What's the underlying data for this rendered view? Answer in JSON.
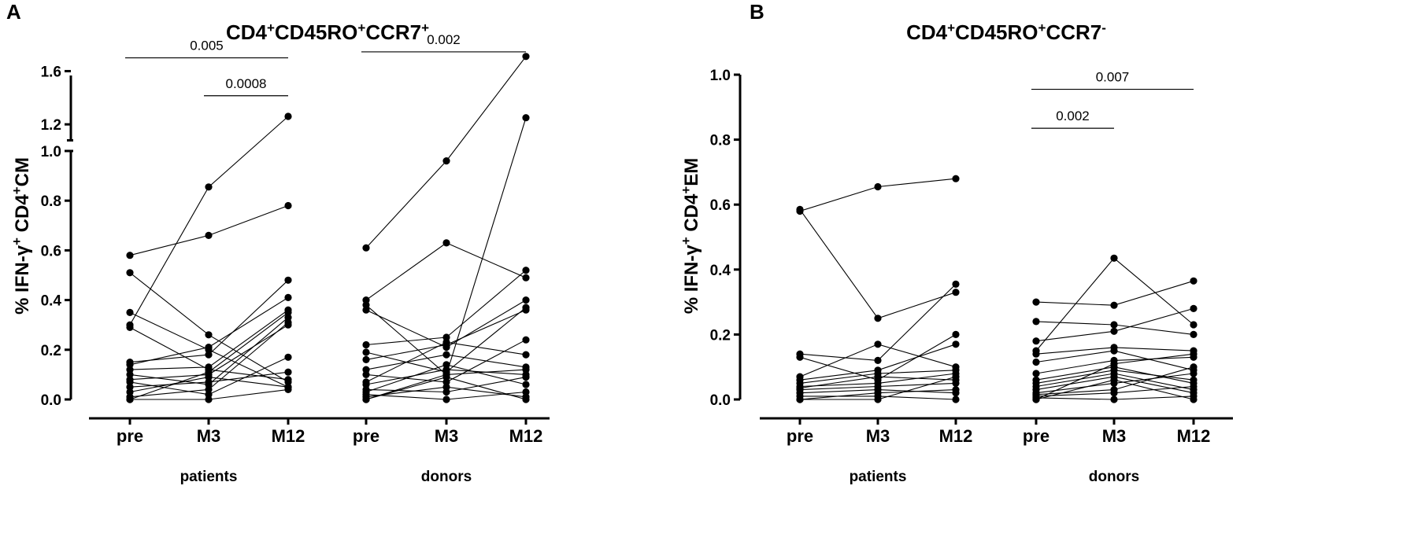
{
  "chart_data": [
    {
      "panel": "A",
      "type": "line",
      "title": {
        "base": "CD4",
        "parts": [
          [
            "+",
            "CD45RO"
          ],
          [
            "+",
            "CCR7"
          ],
          [
            "+",
            ""
          ]
        ]
      },
      "ylabel": {
        "prefix": "% IFN-γ",
        "sup1": "+",
        "mid": " CD4",
        "sup2": "+",
        "suffix": "CM"
      },
      "yaxis": {
        "lower": {
          "range": [
            0,
            1.0
          ],
          "ticks": [
            "0.0",
            "0.2",
            "0.4",
            "0.6",
            "0.8",
            "1.0"
          ]
        },
        "upper": {
          "range": [
            1.0,
            1.7
          ],
          "ticks": [
            "1.2",
            "1.6"
          ]
        }
      },
      "categories": [
        "pre",
        "M3",
        "M12"
      ],
      "groups": [
        {
          "name": "patients",
          "series": [
            [
              0.58,
              0.66,
              0.78
            ],
            [
              0.3,
              0.855,
              1.26
            ],
            [
              0.51,
              0.26,
              0.07
            ],
            [
              0.35,
              0.2,
              0.05
            ],
            [
              0.29,
              0.12,
              0.08
            ],
            [
              0.15,
              0.18,
              0.48
            ],
            [
              0.14,
              0.21,
              0.41
            ],
            [
              0.12,
              0.13,
              0.36
            ],
            [
              0.1,
              0.06,
              0.33
            ],
            [
              0.08,
              0.1,
              0.3
            ],
            [
              0.07,
              0.02,
              0.17
            ],
            [
              0.05,
              0.07,
              0.11
            ],
            [
              0.03,
              0.09,
              0.05
            ],
            [
              0.01,
              0.04,
              0.31
            ],
            [
              0.0,
              0.0,
              0.04
            ],
            [
              0.0,
              0.11,
              0.35
            ]
          ]
        },
        {
          "name": "donors",
          "series": [
            [
              0.61,
              0.96,
              1.71
            ],
            [
              0.4,
              0.63,
              0.49
            ],
            [
              0.38,
              0.1,
              1.25
            ],
            [
              0.36,
              0.21,
              0.4
            ],
            [
              0.22,
              0.25,
              0.52
            ],
            [
              0.19,
              0.11,
              0.37
            ],
            [
              0.16,
              0.22,
              0.36
            ],
            [
              0.12,
              0.18,
              0.13
            ],
            [
              0.1,
              0.07,
              0.24
            ],
            [
              0.07,
              0.23,
              0.18
            ],
            [
              0.06,
              0.12,
              0.1
            ],
            [
              0.04,
              0.03,
              0.09
            ],
            [
              0.03,
              0.14,
              0.06
            ],
            [
              0.02,
              0.0,
              0.03
            ],
            [
              0.01,
              0.05,
              0.01
            ],
            [
              0.0,
              0.09,
              0.0
            ],
            [
              0.0,
              0.1,
              0.12
            ]
          ]
        }
      ],
      "significance": [
        {
          "label": "0.005",
          "group": "patients",
          "from": "pre",
          "to": "M12",
          "level": 1.7
        },
        {
          "label": "0.0008",
          "group": "patients",
          "from": "M3",
          "to": "M12",
          "level": 1.415
        },
        {
          "label": "0.002",
          "group": "donors",
          "from": "pre",
          "to": "M12",
          "level": 1.745
        }
      ]
    },
    {
      "panel": "B",
      "type": "line",
      "title": {
        "base": "CD4",
        "parts": [
          [
            "+",
            "CD45RO"
          ],
          [
            "+",
            "CCR7"
          ],
          [
            "-",
            ""
          ]
        ]
      },
      "ylabel": {
        "prefix": "% IFN-γ",
        "sup1": "+",
        "mid": " CD4",
        "sup2": "+",
        "suffix": "EM"
      },
      "yaxis": {
        "range": [
          0,
          1.0
        ],
        "ticks": [
          "0.0",
          "0.2",
          "0.4",
          "0.6",
          "0.8",
          "1.0"
        ]
      },
      "categories": [
        "pre",
        "M3",
        "M12"
      ],
      "groups": [
        {
          "name": "patients",
          "series": [
            [
              0.58,
              0.655,
              0.68
            ],
            [
              0.585,
              0.25,
              0.33
            ],
            [
              0.14,
              0.12,
              0.355
            ],
            [
              0.13,
              0.06,
              0.2
            ],
            [
              0.07,
              0.17,
              0.1
            ],
            [
              0.06,
              0.09,
              0.17
            ],
            [
              0.05,
              0.08,
              0.09
            ],
            [
              0.04,
              0.05,
              0.08
            ],
            [
              0.035,
              0.07,
              0.06
            ],
            [
              0.03,
              0.04,
              0.05
            ],
            [
              0.02,
              0.03,
              0.02
            ],
            [
              0.01,
              0.01,
              0.0
            ],
            [
              0.0,
              0.02,
              0.03
            ],
            [
              0.0,
              0.0,
              0.07
            ]
          ]
        },
        {
          "name": "donors",
          "series": [
            [
              0.3,
              0.29,
              0.365
            ],
            [
              0.24,
              0.23,
              0.2
            ],
            [
              0.18,
              0.21,
              0.28
            ],
            [
              0.15,
              0.435,
              0.23
            ],
            [
              0.14,
              0.16,
              0.15
            ],
            [
              0.115,
              0.15,
              0.09
            ],
            [
              0.08,
              0.12,
              0.13
            ],
            [
              0.06,
              0.1,
              0.05
            ],
            [
              0.05,
              0.09,
              0.06
            ],
            [
              0.04,
              0.08,
              0.03
            ],
            [
              0.03,
              0.07,
              0.02
            ],
            [
              0.02,
              0.05,
              0.08
            ],
            [
              0.015,
              0.03,
              0.1
            ],
            [
              0.01,
              0.02,
              0.04
            ],
            [
              0.005,
              0.0,
              0.01
            ],
            [
              0.0,
              0.06,
              0.0
            ],
            [
              0.0,
              0.11,
              0.14
            ]
          ]
        }
      ],
      "significance": [
        {
          "label": "0.002",
          "group": "donors",
          "from": "pre",
          "to": "M3",
          "level": 0.835
        },
        {
          "label": "0.007",
          "group": "donors",
          "from": "pre",
          "to": "M12",
          "level": 0.955
        }
      ]
    }
  ]
}
